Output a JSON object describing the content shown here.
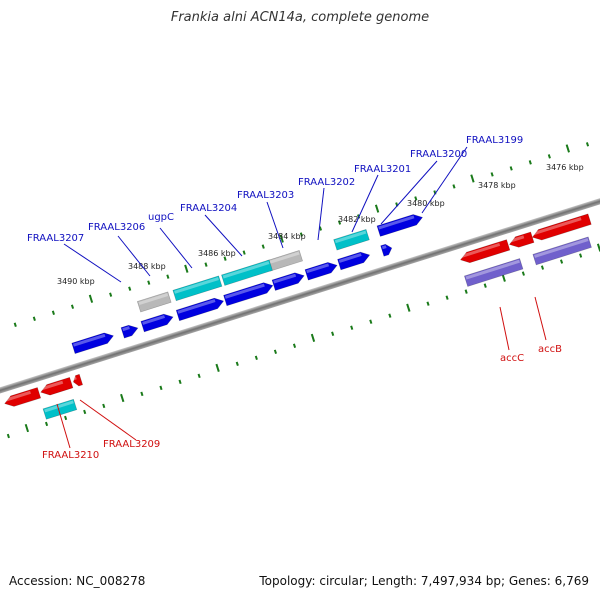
{
  "title": "Frankia alni ACN14a, complete genome",
  "footer": {
    "accession": "Accession: NC_008278",
    "summary": "Topology: circular; Length: 7,497,934 bp; Genes: 6,769"
  },
  "colors": {
    "forward": "#0000e0",
    "reverse": "#e00000",
    "rna": "#00c0c8",
    "grey_feature": "#b8b8b8",
    "purple_feature": "#7060cc",
    "backbone": "#808080",
    "tick": "#1a7a1a",
    "label_forward": "#1010c0",
    "label_reverse": "#d01010"
  },
  "kbp_labels": [
    "3476 kbp",
    "3478 kbp",
    "3480 kbp",
    "3482 kbp",
    "3484 kbp",
    "3486 kbp",
    "3488 kbp",
    "3490 kbp"
  ],
  "gene_labels_top": [
    "FRAAL3199",
    "FRAAL3200",
    "FRAAL3201",
    "FRAAL3202",
    "FRAAL3203",
    "FRAAL3204",
    "ugpC",
    "FRAAL3206",
    "FRAAL3207"
  ],
  "gene_labels_bottom": [
    "accC",
    "accB",
    "FRAAL3209",
    "FRAAL3210"
  ]
}
